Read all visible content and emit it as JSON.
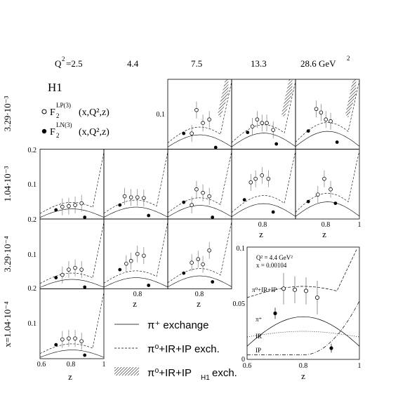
{
  "header": {
    "q2_label": "Q",
    "q2_values": [
      "=2.5",
      "4.4",
      "7.5",
      "13.3",
      "28.6 GeV"
    ],
    "experiment": "H1",
    "legend_open": "F",
    "legend_open_sup": "LP(3)",
    "legend_open_sub": "2",
    "legend_open_args": "(x,Q²,z)",
    "legend_filled": "F",
    "legend_filled_sup": "LN(3)",
    "legend_filled_sub": "2",
    "legend_filled_args": "(x,Q²,z)"
  },
  "row_labels": [
    "3.29·10⁻³",
    "1.04·10⁻³",
    "3.29·10⁻⁴",
    "x=1.04·10⁻⁴"
  ],
  "axes": {
    "zlabel": "z",
    "y_ticks": [
      "0.1",
      "0.2"
    ],
    "x_ticks": [
      "0.6",
      "0.8",
      "1"
    ]
  },
  "bottom_legend": {
    "line1": "π⁺ exchange",
    "line2": "π⁰+IR+IP exch.",
    "line3": "π⁰+IR+IP",
    "line3_sub": "H1",
    "line3_tail": " exch."
  },
  "inset": {
    "q2_text": "Q² = 4.4 GeV²",
    "x_text": "x = 0.00104",
    "label_sum": "π⁰+IR+IP",
    "label_pi": "π⁺",
    "label_ir": "IR",
    "label_ip": "IP",
    "y_ticks": [
      "0",
      "0.05",
      "0.1"
    ],
    "x_ticks": [
      "0.6",
      "0.8",
      "1"
    ],
    "xlabel": "z"
  },
  "colors": {
    "ink": "#000000",
    "bg": "#ffffff"
  },
  "chart_data": {
    "type": "scatter",
    "title": "",
    "xlabel": "z",
    "xlim": [
      0.6,
      1.0
    ],
    "ylim": [
      0,
      0.2
    ],
    "panels": [
      {
        "row": 0,
        "col": 2,
        "lp": [
          [
            0.75,
            0.045
          ],
          [
            0.78,
            0.112
          ],
          [
            0.82,
            0.075
          ],
          [
            0.86,
            0.085
          ]
        ],
        "ln": [
          [
            0.7,
            0.045
          ],
          [
            0.9,
            0.005
          ]
        ]
      },
      {
        "row": 0,
        "col": 3,
        "lp": [
          [
            0.73,
            0.065
          ],
          [
            0.76,
            0.085
          ],
          [
            0.79,
            0.075
          ],
          [
            0.82,
            0.075
          ],
          [
            0.86,
            0.055
          ]
        ],
        "ln": [
          [
            0.7,
            0.048
          ],
          [
            0.88,
            0.015
          ]
        ]
      },
      {
        "row": 0,
        "col": 4,
        "lp": [
          [
            0.73,
            0.115
          ],
          [
            0.76,
            0.105
          ],
          [
            0.79,
            0.085
          ],
          [
            0.82,
            0.08
          ]
        ],
        "ln": [
          [
            0.68,
            0.052
          ],
          [
            0.86,
            0.02
          ]
        ]
      },
      {
        "row": 1,
        "col": 0,
        "lp": [
          [
            0.74,
            0.035
          ],
          [
            0.78,
            0.037
          ],
          [
            0.82,
            0.04
          ],
          [
            0.86,
            0.045
          ]
        ],
        "ln": [
          [
            0.7,
            0.026
          ],
          [
            0.88,
            0.005
          ]
        ]
      },
      {
        "row": 1,
        "col": 1,
        "lp": [
          [
            0.73,
            0.065
          ],
          [
            0.77,
            0.062
          ],
          [
            0.81,
            0.062
          ],
          [
            0.85,
            0.06
          ]
        ],
        "ln": [
          [
            0.7,
            0.04
          ],
          [
            0.88,
            0.01
          ]
        ]
      },
      {
        "row": 1,
        "col": 2,
        "lp": [
          [
            0.75,
            0.04
          ],
          [
            0.78,
            0.085
          ],
          [
            0.82,
            0.075
          ],
          [
            0.86,
            0.065
          ]
        ],
        "ln": [
          [
            0.7,
            0.048
          ],
          [
            0.88,
            0.005
          ]
        ]
      },
      {
        "row": 1,
        "col": 3,
        "lp": [
          [
            0.72,
            0.105
          ],
          [
            0.75,
            0.115
          ],
          [
            0.79,
            0.125
          ],
          [
            0.83,
            0.115
          ]
        ],
        "ln": [
          [
            0.68,
            0.055
          ],
          [
            0.86,
            0.02
          ]
        ]
      },
      {
        "row": 1,
        "col": 4,
        "lp": [
          [
            0.74,
            0.07
          ],
          [
            0.78,
            0.115
          ],
          [
            0.82,
            0.085
          ]
        ],
        "ln": [
          [
            0.68,
            0.05
          ],
          [
            0.85,
            0.045
          ]
        ]
      },
      {
        "row": 2,
        "col": 0,
        "lp": [
          [
            0.74,
            0.04
          ],
          [
            0.78,
            0.055
          ],
          [
            0.82,
            0.06
          ],
          [
            0.86,
            0.055
          ]
        ],
        "ln": [
          [
            0.7,
            0.032
          ],
          [
            0.88,
            0.005
          ]
        ]
      },
      {
        "row": 2,
        "col": 1,
        "lp": [
          [
            0.74,
            0.072
          ],
          [
            0.77,
            0.08
          ],
          [
            0.81,
            0.1
          ],
          [
            0.85,
            0.095
          ]
        ],
        "ln": [
          [
            0.7,
            0.055
          ],
          [
            0.88,
            0.01
          ]
        ]
      },
      {
        "row": 2,
        "col": 2,
        "lp": [
          [
            0.75,
            0.075
          ],
          [
            0.79,
            0.085
          ],
          [
            0.82,
            0.07
          ],
          [
            0.86,
            0.11
          ]
        ],
        "ln": [
          [
            0.7,
            0.045
          ],
          [
            0.88,
            0.02
          ]
        ]
      },
      {
        "row": 3,
        "col": 0,
        "lp": [
          [
            0.74,
            0.055
          ],
          [
            0.78,
            0.058
          ],
          [
            0.82,
            0.058
          ],
          [
            0.86,
            0.05
          ]
        ],
        "ln": [
          [
            0.7,
            0.04
          ],
          [
            0.88,
            0.01
          ]
        ]
      }
    ],
    "inset": {
      "xlim": [
        0.6,
        1.0
      ],
      "ylim": [
        0,
        0.1
      ],
      "lp": [
        [
          0.73,
          0.063
        ],
        [
          0.77,
          0.062
        ],
        [
          0.81,
          0.061
        ],
        [
          0.85,
          0.055
        ]
      ],
      "lp_err": [
        0.014,
        0.012,
        0.012,
        0.015
      ],
      "ln": [
        [
          0.7,
          0.041
        ],
        [
          0.9,
          0.01
        ]
      ],
      "ln_err": [
        0.005,
        0.004
      ]
    },
    "series": [
      {
        "name": "π⁺ exchange"
      },
      {
        "name": "π⁰+IR+IP exch."
      },
      {
        "name": "π⁰+IR+IP_H1 exch."
      }
    ]
  }
}
